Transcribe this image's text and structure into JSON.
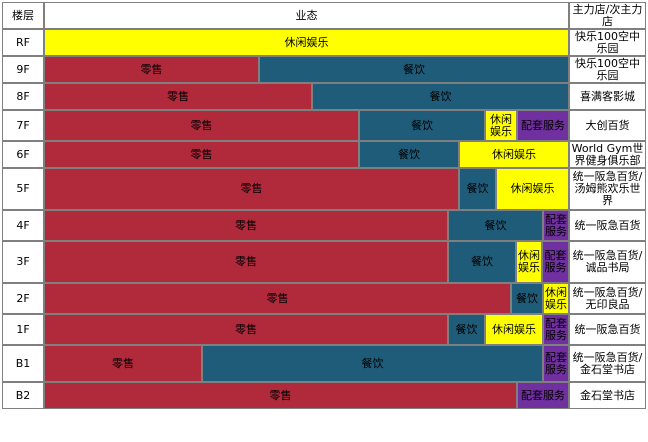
{
  "header": {
    "floor": "楼层",
    "format": "业态",
    "anchor": "主力店/次主力店"
  },
  "colors": {
    "retail": "#b02a3c",
    "food": "#1f5c79",
    "leisure": "#ffff00",
    "service": "#7030a0"
  },
  "rows": [
    {
      "floor": "RF",
      "anchor": "快乐100空中乐园",
      "segments": [
        {
          "type": "leisure",
          "label": "休闲娱乐",
          "share": 1.0
        }
      ]
    },
    {
      "floor": "9F",
      "anchor": "快乐100空中乐园",
      "segments": [
        {
          "type": "retail",
          "label": "零售",
          "share": 0.41
        },
        {
          "type": "food",
          "label": "餐饮",
          "share": 0.59
        }
      ]
    },
    {
      "floor": "8F",
      "anchor": "喜满客影城",
      "segments": [
        {
          "type": "retail",
          "label": "零售",
          "share": 0.51
        },
        {
          "type": "food",
          "label": "餐饮",
          "share": 0.49
        }
      ]
    },
    {
      "floor": "7F",
      "anchor": "大创百货",
      "segments": [
        {
          "type": "retail",
          "label": "零售",
          "share": 0.6
        },
        {
          "type": "food",
          "label": "餐饮",
          "share": 0.24
        },
        {
          "type": "leisure",
          "label": "休闲娱乐",
          "share": 0.06
        },
        {
          "type": "service",
          "label": "配套服务",
          "share": 0.1
        }
      ]
    },
    {
      "floor": "6F",
      "anchor": "World Gym世界健身俱乐部",
      "segments": [
        {
          "type": "retail",
          "label": "零售",
          "share": 0.6
        },
        {
          "type": "food",
          "label": "餐饮",
          "share": 0.19
        },
        {
          "type": "leisure",
          "label": "休闲娱乐",
          "share": 0.21
        }
      ]
    },
    {
      "floor": "5F",
      "anchor": "统一阪急百货/汤姆熊欢乐世界",
      "segments": [
        {
          "type": "retail",
          "label": "零售",
          "share": 0.79
        },
        {
          "type": "food",
          "label": "餐饮",
          "share": 0.07
        },
        {
          "type": "leisure",
          "label": "休闲娱乐",
          "share": 0.14
        }
      ]
    },
    {
      "floor": "4F",
      "anchor": "统一阪急百货",
      "segments": [
        {
          "type": "retail",
          "label": "零售",
          "share": 0.77
        },
        {
          "type": "food",
          "label": "餐饮",
          "share": 0.18
        },
        {
          "type": "service",
          "label": "配套服务",
          "share": 0.05
        }
      ]
    },
    {
      "floor": "3F",
      "anchor": "统一阪急百货/诚品书局",
      "segments": [
        {
          "type": "retail",
          "label": "零售",
          "share": 0.77
        },
        {
          "type": "food",
          "label": "餐饮",
          "share": 0.13
        },
        {
          "type": "leisure",
          "label": "休闲娱乐",
          "share": 0.05
        },
        {
          "type": "service",
          "label": "配套服务",
          "share": 0.05
        }
      ]
    },
    {
      "floor": "2F",
      "anchor": "统一阪急百货/无印良品",
      "segments": [
        {
          "type": "retail",
          "label": "零售",
          "share": 0.89
        },
        {
          "type": "food",
          "label": "餐饮",
          "share": 0.06
        },
        {
          "type": "leisure",
          "label": "休闲娱乐",
          "share": 0.05
        }
      ]
    },
    {
      "floor": "1F",
      "anchor": "统一阪急百货",
      "segments": [
        {
          "type": "retail",
          "label": "零售",
          "share": 0.77
        },
        {
          "type": "food",
          "label": "餐饮",
          "share": 0.07
        },
        {
          "type": "leisure",
          "label": "休闲娱乐",
          "share": 0.11
        },
        {
          "type": "service",
          "label": "配套服务",
          "share": 0.05
        }
      ]
    },
    {
      "floor": "B1",
      "anchor": "统一阪急百货/金石堂书店",
      "segments": [
        {
          "type": "retail",
          "label": "零售",
          "share": 0.3
        },
        {
          "type": "food",
          "label": "餐饮",
          "share": 0.65
        },
        {
          "type": "service",
          "label": "配套服务",
          "share": 0.05
        }
      ]
    },
    {
      "floor": "B2",
      "anchor": "金石堂书店",
      "segments": [
        {
          "type": "retail",
          "label": "零售",
          "share": 0.9
        },
        {
          "type": "service",
          "label": "配套服务",
          "share": 0.1
        }
      ]
    }
  ]
}
